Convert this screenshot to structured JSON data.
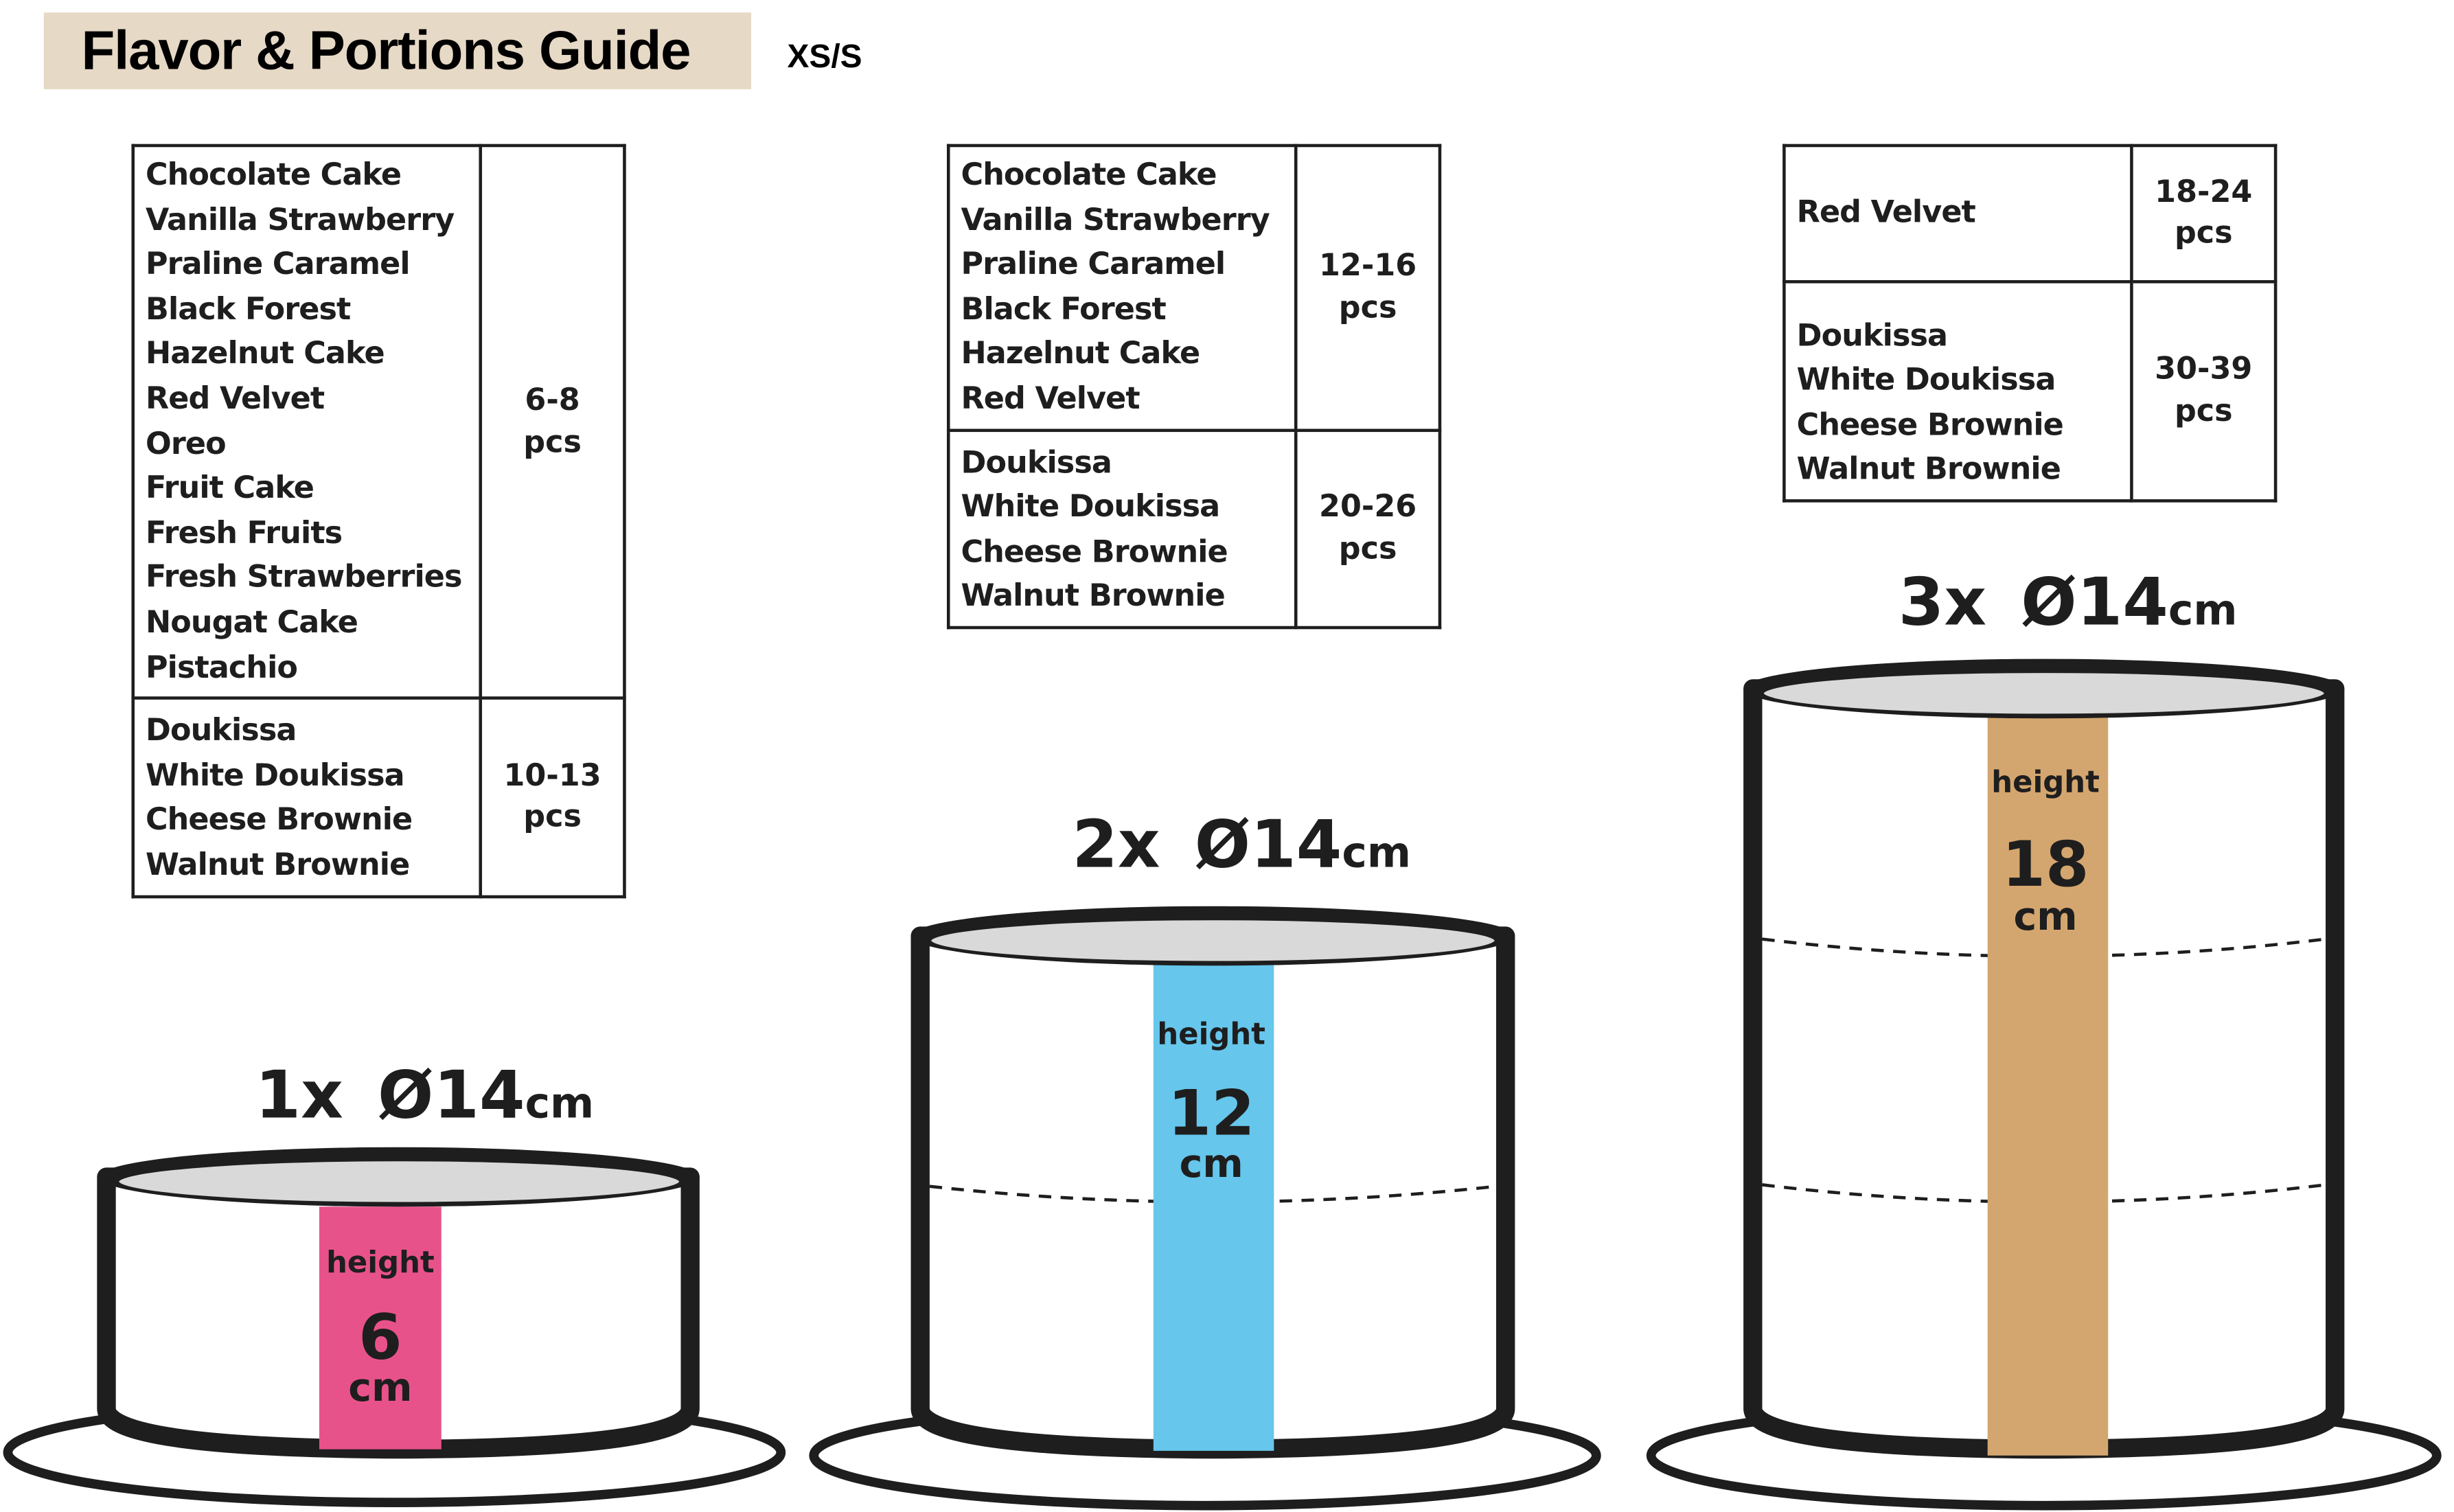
{
  "header": {
    "title": "Flavor & Portions Guide",
    "size_label": "XS/S"
  },
  "colors": {
    "title_bg": "#e6d9c6",
    "band_1x": "#e8528a",
    "band_2x": "#66c6ec",
    "band_3x": "#d4a66f",
    "cake_top": "#d9d9d9",
    "outline": "#1e1e1e"
  },
  "tables": [
    {
      "rows": [
        {
          "flavors": [
            "Chocolate Cake",
            "Vanilla Strawberry",
            "Praline Caramel",
            "Black Forest",
            "Hazelnut Cake",
            "Red Velvet",
            "Oreo",
            "Fruit Cake",
            "Fresh Fruits",
            "Fresh Strawberries",
            "Nougat Cake",
            "Pistachio"
          ],
          "pieces": "6-8",
          "unit": "pcs"
        },
        {
          "flavors": [
            "Doukissa",
            "White Doukissa",
            "Cheese Brownie",
            "Walnut Brownie"
          ],
          "pieces": "10-13",
          "unit": "pcs"
        }
      ]
    },
    {
      "rows": [
        {
          "flavors": [
            "Chocolate Cake",
            "Vanilla Strawberry",
            "Praline Caramel",
            "Black Forest",
            "Hazelnut Cake",
            "Red Velvet"
          ],
          "pieces": "12-16",
          "unit": "pcs"
        },
        {
          "flavors": [
            "Doukissa",
            "White Doukissa",
            "Cheese Brownie",
            "Walnut Brownie"
          ],
          "pieces": "20-26",
          "unit": "pcs"
        }
      ]
    },
    {
      "rows": [
        {
          "flavors": [
            "Red Velvet"
          ],
          "pieces": "18-24",
          "unit": "pcs"
        },
        {
          "flavors": [
            "Doukissa",
            "White Doukissa",
            "Cheese Brownie",
            "Walnut Brownie"
          ],
          "pieces": "30-39",
          "unit": "pcs"
        }
      ]
    }
  ],
  "cakes": [
    {
      "count": "1x",
      "diameter": "Ø14",
      "diameter_unit": "cm",
      "height_label": "height",
      "height": "6",
      "height_unit": "cm",
      "layers": 1
    },
    {
      "count": "2x",
      "diameter": "Ø14",
      "diameter_unit": "cm",
      "height_label": "height",
      "height": "12",
      "height_unit": "cm",
      "layers": 2
    },
    {
      "count": "3x",
      "diameter": "Ø14",
      "diameter_unit": "cm",
      "height_label": "height",
      "height": "18",
      "height_unit": "cm",
      "layers": 3
    }
  ]
}
